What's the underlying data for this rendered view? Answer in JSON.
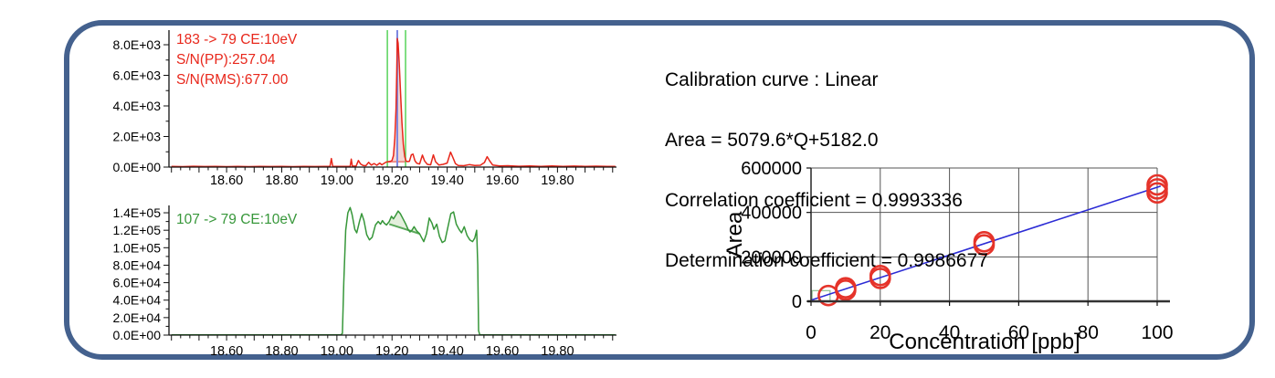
{
  "panel": {
    "border_color": "#44618E",
    "background": "#ffffff"
  },
  "calibration": {
    "line1": "Calibration curve : Linear",
    "line2": "Area = 5079.6*Q+5182.0",
    "line3": "Correlation coefficient = 0.9993336",
    "line4": "Determination coefficient = 0.9986677"
  },
  "chart_data": [
    {
      "id": "chrom_top",
      "type": "line",
      "title": "183 -> 79 CE:10eV",
      "annotations": [
        "183 -> 79 CE:10eV",
        "S/N(PP):257.04",
        "S/N(RMS):677.00"
      ],
      "color": "#e8271b",
      "xlim": [
        18.391,
        20.014
      ],
      "ylim": [
        0,
        8955
      ],
      "x_ticks": [
        18.6,
        18.8,
        19.0,
        19.2,
        19.4,
        19.6,
        19.8
      ],
      "x_tick_labels": [
        "18.60",
        "18.80",
        "19.00",
        "19.20",
        "19.40",
        "19.60",
        "19.80"
      ],
      "x_minor_step": 0.03333333,
      "x_major_every": 3,
      "y_ticks": [
        0,
        2000,
        4000,
        6000,
        8000
      ],
      "y_tick_labels": [
        "0.0E+00",
        "2.0E+03",
        "4.0E+03",
        "6.0E+03",
        "8.0E+03"
      ],
      "y_minor_step": 1000,
      "peak_region": {
        "t1": 19.183,
        "t2": 19.252,
        "b1": 350,
        "b2": 350,
        "fill": "#f5d6d2",
        "baseline_color": "#ec8d86"
      },
      "vlines": [
        {
          "t": 19.183,
          "color": "#57d35a"
        },
        {
          "t": 19.249,
          "color": "#57d35a"
        },
        {
          "t": 19.219,
          "color": "#7b86e0"
        }
      ],
      "points": [
        [
          18.4,
          50
        ],
        [
          18.44,
          30
        ],
        [
          18.48,
          55
        ],
        [
          18.52,
          35
        ],
        [
          18.56,
          50
        ],
        [
          18.6,
          30
        ],
        [
          18.64,
          45
        ],
        [
          18.68,
          30
        ],
        [
          18.72,
          50
        ],
        [
          18.76,
          35
        ],
        [
          18.8,
          45
        ],
        [
          18.84,
          30
        ],
        [
          18.88,
          50
        ],
        [
          18.92,
          35
        ],
        [
          18.955,
          40
        ],
        [
          18.975,
          40
        ],
        [
          18.98,
          560
        ],
        [
          18.985,
          45
        ],
        [
          19.0,
          50
        ],
        [
          19.02,
          40
        ],
        [
          19.048,
          45
        ],
        [
          19.052,
          520
        ],
        [
          19.056,
          60
        ],
        [
          19.07,
          80
        ],
        [
          19.078,
          430
        ],
        [
          19.086,
          200
        ],
        [
          19.095,
          110
        ],
        [
          19.105,
          90
        ],
        [
          19.115,
          310
        ],
        [
          19.125,
          130
        ],
        [
          19.135,
          230
        ],
        [
          19.145,
          120
        ],
        [
          19.155,
          260
        ],
        [
          19.163,
          150
        ],
        [
          19.17,
          230
        ],
        [
          19.178,
          320
        ],
        [
          19.185,
          350
        ],
        [
          19.19,
          360
        ],
        [
          19.195,
          380
        ],
        [
          19.2,
          430
        ],
        [
          19.205,
          750
        ],
        [
          19.21,
          1900
        ],
        [
          19.2145,
          3800
        ],
        [
          19.217,
          6200
        ],
        [
          19.219,
          8400
        ],
        [
          19.222,
          8100
        ],
        [
          19.226,
          6800
        ],
        [
          19.231,
          4800
        ],
        [
          19.236,
          2900
        ],
        [
          19.241,
          1500
        ],
        [
          19.246,
          700
        ],
        [
          19.251,
          390
        ],
        [
          19.257,
          360
        ],
        [
          19.263,
          380
        ],
        [
          19.27,
          800
        ],
        [
          19.276,
          850
        ],
        [
          19.283,
          420
        ],
        [
          19.29,
          250
        ],
        [
          19.3,
          200
        ],
        [
          19.31,
          780
        ],
        [
          19.318,
          400
        ],
        [
          19.328,
          180
        ],
        [
          19.34,
          150
        ],
        [
          19.35,
          800
        ],
        [
          19.358,
          350
        ],
        [
          19.37,
          130
        ],
        [
          19.385,
          180
        ],
        [
          19.4,
          260
        ],
        [
          19.412,
          980
        ],
        [
          19.42,
          650
        ],
        [
          19.43,
          220
        ],
        [
          19.44,
          110
        ],
        [
          19.46,
          90
        ],
        [
          19.48,
          160
        ],
        [
          19.5,
          100
        ],
        [
          19.52,
          120
        ],
        [
          19.535,
          300
        ],
        [
          19.545,
          680
        ],
        [
          19.555,
          380
        ],
        [
          19.565,
          140
        ],
        [
          19.59,
          70
        ],
        [
          19.62,
          90
        ],
        [
          19.66,
          55
        ],
        [
          19.7,
          80
        ],
        [
          19.74,
          50
        ],
        [
          19.78,
          70
        ],
        [
          19.82,
          45
        ],
        [
          19.86,
          65
        ],
        [
          19.9,
          45
        ],
        [
          19.94,
          60
        ],
        [
          19.98,
          40
        ],
        [
          20.01,
          50
        ]
      ]
    },
    {
      "id": "chrom_bottom",
      "type": "line",
      "title": "107 -> 79 CE:10eV",
      "annotations": [
        "107 -> 79 CE:10eV"
      ],
      "color": "#37973a",
      "xlim": [
        18.391,
        20.014
      ],
      "ylim": [
        0,
        148400
      ],
      "x_ticks": [
        18.6,
        18.8,
        19.0,
        19.2,
        19.4,
        19.6,
        19.8
      ],
      "x_tick_labels": [
        "18.60",
        "18.80",
        "19.00",
        "19.20",
        "19.40",
        "19.60",
        "19.80"
      ],
      "x_minor_step": 0.03333333,
      "x_major_every": 3,
      "y_ticks": [
        0,
        20000,
        40000,
        60000,
        80000,
        100000,
        120000,
        140000
      ],
      "y_tick_labels": [
        "0.0E+00",
        "2.0E+04",
        "4.0E+04",
        "6.0E+04",
        "8.0E+04",
        "1.0E+05",
        "1.2E+05",
        "1.4E+05"
      ],
      "y_minor_step": 10000,
      "peak_region": {
        "t1": 19.19,
        "t2": 19.3,
        "b1": 127000,
        "b2": 116000,
        "fill": "#e3efdc",
        "baseline_color": "#5aa85a"
      },
      "vlines": [],
      "points": [
        [
          18.4,
          300
        ],
        [
          18.5,
          250
        ],
        [
          18.6,
          320
        ],
        [
          18.7,
          260
        ],
        [
          18.8,
          320
        ],
        [
          18.9,
          270
        ],
        [
          18.95,
          300
        ],
        [
          19.0,
          280
        ],
        [
          19.015,
          350
        ],
        [
          19.02,
          2000
        ],
        [
          19.025,
          60000
        ],
        [
          19.032,
          120000
        ],
        [
          19.04,
          140000
        ],
        [
          19.048,
          146000
        ],
        [
          19.055,
          138000
        ],
        [
          19.065,
          121000
        ],
        [
          19.072,
          117000
        ],
        [
          19.082,
          130000
        ],
        [
          19.09,
          139000
        ],
        [
          19.098,
          131000
        ],
        [
          19.108,
          115000
        ],
        [
          19.118,
          109000
        ],
        [
          19.128,
          112000
        ],
        [
          19.14,
          126000
        ],
        [
          19.15,
          130000
        ],
        [
          19.158,
          127000
        ],
        [
          19.165,
          131000
        ],
        [
          19.172,
          128000
        ],
        [
          19.18,
          126000
        ],
        [
          19.19,
          130000
        ],
        [
          19.198,
          136000
        ],
        [
          19.205,
          133000
        ],
        [
          19.213,
          137000
        ],
        [
          19.222,
          142000
        ],
        [
          19.23,
          139000
        ],
        [
          19.24,
          133000
        ],
        [
          19.25,
          127000
        ],
        [
          19.258,
          121000
        ],
        [
          19.265,
          118000
        ],
        [
          19.272,
          120000
        ],
        [
          19.28,
          124000
        ],
        [
          19.29,
          119000
        ],
        [
          19.3,
          116000
        ],
        [
          19.308,
          111000
        ],
        [
          19.315,
          107000
        ],
        [
          19.325,
          116000
        ],
        [
          19.335,
          134000
        ],
        [
          19.345,
          128000
        ],
        [
          19.352,
          121000
        ],
        [
          19.362,
          127000
        ],
        [
          19.372,
          113000
        ],
        [
          19.382,
          106000
        ],
        [
          19.392,
          108000
        ],
        [
          19.403,
          124000
        ],
        [
          19.413,
          139000
        ],
        [
          19.423,
          141000
        ],
        [
          19.433,
          127000
        ],
        [
          19.443,
          121000
        ],
        [
          19.452,
          117000
        ],
        [
          19.462,
          124000
        ],
        [
          19.472,
          114000
        ],
        [
          19.482,
          109000
        ],
        [
          19.492,
          107000
        ],
        [
          19.5,
          111000
        ],
        [
          19.507,
          120000
        ],
        [
          19.511,
          80000
        ],
        [
          19.514,
          5000
        ],
        [
          19.518,
          400
        ],
        [
          19.56,
          300
        ],
        [
          19.62,
          350
        ],
        [
          19.68,
          280
        ],
        [
          19.74,
          330
        ],
        [
          19.8,
          280
        ],
        [
          19.86,
          320
        ],
        [
          19.92,
          270
        ],
        [
          19.98,
          320
        ],
        [
          20.01,
          300
        ]
      ]
    },
    {
      "id": "calibration_plot",
      "type": "scatter",
      "xlabel": "Concentration [ppb]",
      "ylabel": "Area",
      "xlim": [
        0,
        100
      ],
      "ylim": [
        0,
        600000
      ],
      "grid": true,
      "x_ticks": [
        0,
        20,
        40,
        60,
        80,
        100
      ],
      "x_tick_labels": [
        "0",
        "20",
        "40",
        "60",
        "80",
        "100"
      ],
      "y_ticks": [
        0,
        200000,
        400000,
        600000
      ],
      "y_tick_labels": [
        "0",
        "200000",
        "400000",
        "600000"
      ],
      "fit_line": {
        "color": "#2b2bd5",
        "slope": 5079.6,
        "intercept": 5182.0,
        "x_start": 0,
        "x_end": 101
      },
      "marker": {
        "color": "#e5332a",
        "radius": 10.5,
        "stroke_width": 2.6
      },
      "points": [
        [
          5,
          26000
        ],
        [
          10,
          50000
        ],
        [
          10,
          61000
        ],
        [
          20,
          103000
        ],
        [
          20,
          116000
        ],
        [
          50,
          254000
        ],
        [
          50,
          268000
        ],
        [
          100,
          488000
        ],
        [
          100,
          506000
        ],
        [
          100,
          524000
        ]
      ],
      "range_box": {
        "x1": 0.3,
        "x2": 5.5,
        "y1": 2000,
        "y2": 48000,
        "color": "#8fbf8f"
      }
    }
  ]
}
